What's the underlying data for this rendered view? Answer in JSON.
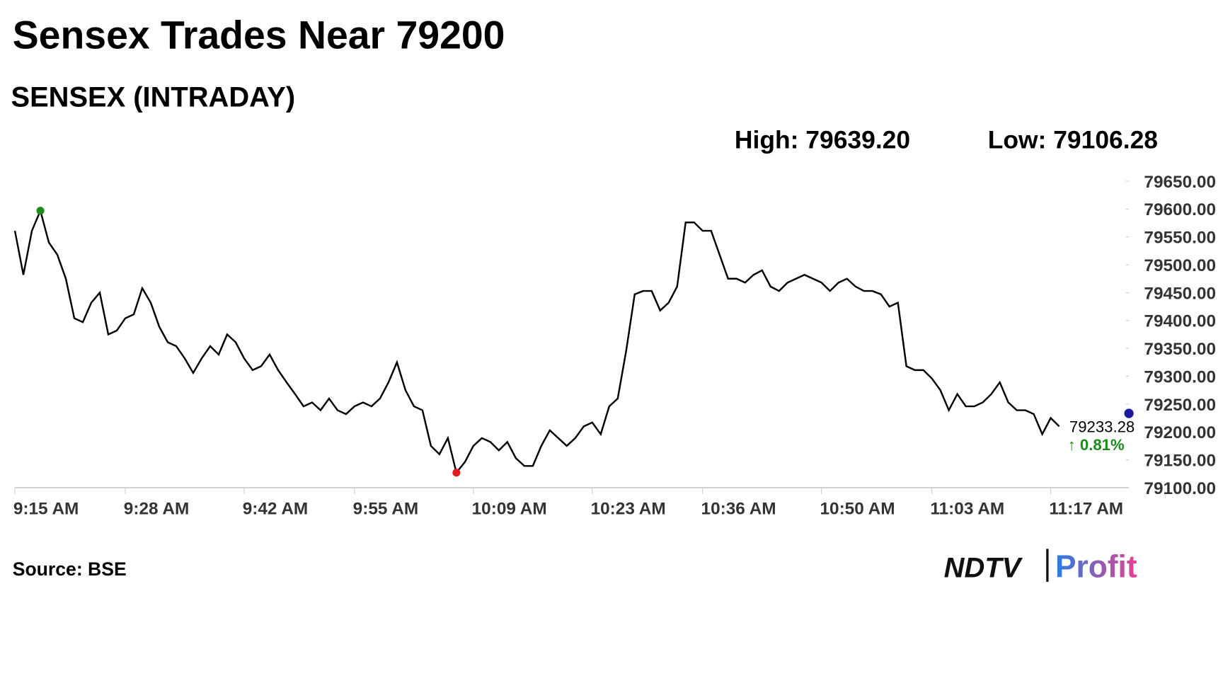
{
  "chart_data": {
    "type": "line",
    "title": "Sensex Trades Near 79200",
    "subtitle": "SENSEX (INTRADAY)",
    "high_label": "High: 79639.20",
    "low_label": "Low: 79106.28",
    "last_value": 79233.28,
    "last_label": "79233.28",
    "change_label": "↑ 0.81%",
    "source": "Source: BSE",
    "logo": [
      "NDTV",
      "Profit"
    ],
    "categories": [
      "9:15 AM",
      "9:16 AM",
      "9:17 AM",
      "9:18 AM",
      "9:19 AM",
      "9:20 AM",
      "9:21 AM",
      "9:22 AM",
      "9:23 AM",
      "9:24 AM",
      "9:25 AM",
      "9:26 AM",
      "9:27 AM",
      "9:28 AM",
      "9:29 AM",
      "9:30 AM",
      "9:31 AM",
      "9:32 AM",
      "9:33 AM",
      "9:34 AM",
      "9:35 AM",
      "9:36 AM",
      "9:37 AM",
      "9:38 AM",
      "9:39 AM",
      "9:40 AM",
      "9:41 AM",
      "9:42 AM",
      "9:43 AM",
      "9:44 AM",
      "9:45 AM",
      "9:46 AM",
      "9:47 AM",
      "9:48 AM",
      "9:49 AM",
      "9:50 AM",
      "9:51 AM",
      "9:52 AM",
      "9:53 AM",
      "9:54 AM",
      "9:55 AM",
      "9:56 AM",
      "9:57 AM",
      "9:58 AM",
      "9:59 AM",
      "10:00 AM",
      "10:01 AM",
      "10:02 AM",
      "10:03 AM",
      "10:04 AM",
      "10:05 AM",
      "10:06 AM",
      "10:07 AM",
      "10:08 AM",
      "10:09 AM",
      "10:10 AM",
      "10:11 AM",
      "10:12 AM",
      "10:13 AM",
      "10:14 AM",
      "10:15 AM",
      "10:16 AM",
      "10:17 AM",
      "10:18 AM",
      "10:19 AM",
      "10:20 AM",
      "10:21 AM",
      "10:22 AM",
      "10:23 AM",
      "10:24 AM",
      "10:25 AM",
      "10:26 AM",
      "10:27 AM",
      "10:28 AM",
      "10:29 AM",
      "10:30 AM",
      "10:31 AM",
      "10:32 AM",
      "10:33 AM",
      "10:34 AM",
      "10:35 AM",
      "10:36 AM",
      "10:37 AM",
      "10:38 AM",
      "10:39 AM",
      "10:40 AM",
      "10:41 AM",
      "10:42 AM",
      "10:43 AM",
      "10:44 AM",
      "10:45 AM",
      "10:46 AM",
      "10:47 AM",
      "10:48 AM",
      "10:49 AM",
      "10:50 AM",
      "10:51 AM",
      "10:52 AM",
      "10:53 AM",
      "10:54 AM",
      "10:55 AM",
      "10:56 AM",
      "10:57 AM",
      "10:58 AM",
      "10:59 AM",
      "11:00 AM",
      "11:01 AM",
      "11:02 AM",
      "11:03 AM",
      "11:04 AM",
      "11:05 AM",
      "11:06 AM",
      "11:07 AM",
      "11:08 AM",
      "11:09 AM",
      "11:10 AM",
      "11:11 AM",
      "11:12 AM",
      "11:13 AM",
      "11:14 AM",
      "11:15 AM",
      "11:16 AM",
      "11:17 AM",
      "11:18 AM"
    ],
    "values": [
      79561,
      79482,
      79561,
      79597,
      79540,
      79518,
      79475,
      79404,
      79397,
      79432,
      79450,
      79375,
      79382,
      79404,
      79411,
      79458,
      79432,
      79389,
      79361,
      79354,
      79332,
      79306,
      79332,
      79354,
      79339,
      79375,
      79361,
      79332,
      79311,
      79318,
      79339,
      79311,
      79289,
      79268,
      79246,
      79253,
      79239,
      79260,
      79239,
      79232,
      79246,
      79253,
      79246,
      79260,
      79289,
      79325,
      79275,
      79246,
      79239,
      79175,
      79160,
      79189,
      79127,
      79146,
      79175,
      79189,
      79182,
      79167,
      79182,
      79153,
      79139,
      79139,
      79175,
      79203,
      79189,
      79175,
      79189,
      79210,
      79217,
      79196,
      79246,
      79260,
      79346,
      79447,
      79453,
      79453,
      79418,
      79432,
      79461,
      79576,
      79576,
      79561,
      79561,
      79518,
      79475,
      79475,
      79468,
      79482,
      79490,
      79461,
      79453,
      79468,
      79475,
      79482,
      79475,
      79468,
      79453,
      79468,
      79475,
      79461,
      79453,
      79453,
      79447,
      79425,
      79432,
      79318,
      79311,
      79311,
      79296,
      79275,
      79239,
      79268,
      79246,
      79246,
      79253,
      79268,
      79289,
      79253,
      79239,
      79239,
      79232,
      79196,
      79225,
      79210
    ],
    "color": "#000000",
    "xticks": [
      "9:15 AM",
      "9:28 AM",
      "9:42 AM",
      "9:55 AM",
      "10:09 AM",
      "10:23 AM",
      "10:36 AM",
      "10:50 AM",
      "11:03 AM",
      "11:17 AM"
    ],
    "ylim": [
      79100,
      79660
    ],
    "yticks": [
      {
        "value": 79100,
        "label": "79100.00"
      },
      {
        "value": 79150,
        "label": "79150.00"
      },
      {
        "value": 79200,
        "label": "79200.00"
      },
      {
        "value": 79250,
        "label": "79250.00"
      },
      {
        "value": 79300,
        "label": "79300.00"
      },
      {
        "value": 79350,
        "label": "79350.00"
      },
      {
        "value": 79400,
        "label": "79400.00"
      },
      {
        "value": 79450,
        "label": "79450.00"
      },
      {
        "value": 79500,
        "label": "79500.00"
      },
      {
        "value": 79550,
        "label": "79550.00"
      },
      {
        "value": 79600,
        "label": "79600.00"
      },
      {
        "value": 79650,
        "label": "79650.00"
      }
    ]
  }
}
